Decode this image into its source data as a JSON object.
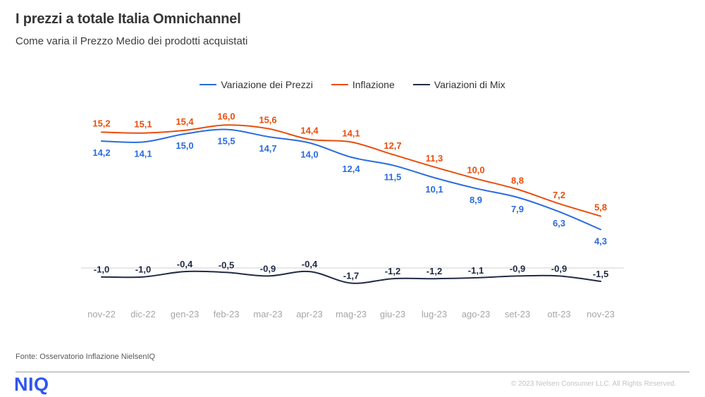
{
  "header": {
    "title": "I prezzi a totale Italia Omnichannel",
    "subtitle": "Come varia il Prezzo Medio dei prodotti acquistati"
  },
  "chart_data": {
    "type": "line",
    "title": "I prezzi a totale Italia Omnichannel",
    "categories": [
      "nov-22",
      "dic-22",
      "gen-23",
      "feb-23",
      "mar-23",
      "apr-23",
      "mag-23",
      "giu-23",
      "lug-23",
      "ago-23",
      "set-23",
      "ott-23",
      "nov-23"
    ],
    "series": [
      {
        "name": "Variazione dei Prezzi",
        "color": "#2A6BDF",
        "values": [
          14.2,
          14.1,
          15.0,
          15.5,
          14.7,
          14.0,
          12.4,
          11.5,
          10.1,
          8.9,
          7.9,
          6.3,
          4.3
        ]
      },
      {
        "name": "Inflazione",
        "color": "#E84E0D",
        "values": [
          15.2,
          15.1,
          15.4,
          16.0,
          15.6,
          14.4,
          14.1,
          12.7,
          11.3,
          10.0,
          8.8,
          7.2,
          5.8
        ]
      },
      {
        "name": "Variazioni di Mix",
        "color": "#222B45",
        "values": [
          -1.0,
          -1.0,
          -0.4,
          -0.5,
          -0.9,
          -0.4,
          -1.7,
          -1.2,
          -1.2,
          -1.1,
          -0.9,
          -0.9,
          -1.5
        ]
      }
    ],
    "decimal_separator": ",",
    "data_labels": true,
    "gridline": {
      "value": 0,
      "color": "#D9D9D9"
    },
    "axis": {
      "tick_color": "#A6A6A6"
    },
    "legend_position": "top",
    "ylim": [
      -2.5,
      17
    ]
  },
  "footer": {
    "source": "Fonte: Osservatorio Inflazione NielsenIQ",
    "logo": "NIQ",
    "copyright": "© 2023  Nielsen Consumer LLC. All Rights Reserved."
  }
}
